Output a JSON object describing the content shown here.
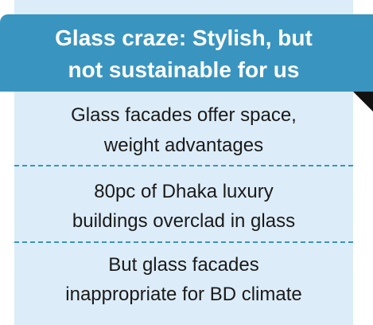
{
  "header": {
    "title": [
      "Glass craze: Stylish, but",
      "not sustainable for us"
    ]
  },
  "items": [
    [
      "Glass facades offer space,",
      "weight advantages"
    ],
    [
      "80pc of Dhaka luxury",
      "buildings overclad in glass"
    ],
    [
      "But glass facades",
      "inappropriate for BD climate"
    ]
  ]
}
